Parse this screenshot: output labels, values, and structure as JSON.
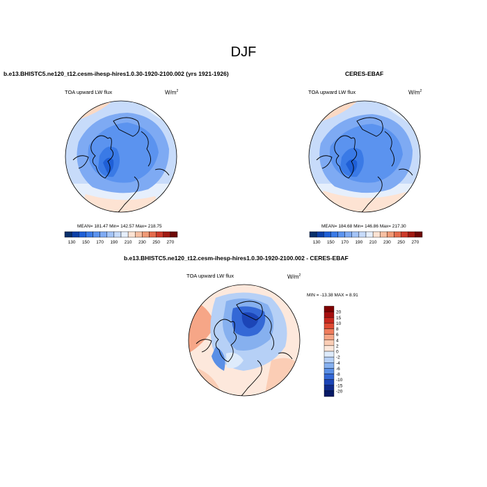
{
  "figure": {
    "title": "DJF"
  },
  "panels": [
    {
      "subtitle": "b.e13.BHISTC5.ne120_t12.cesm-ihesp-hires1.0.30-1920-2100.002 (yrs 1921-1926)",
      "variable": "TOA upward LW flux",
      "units": "W/m",
      "units_exp": "2",
      "stats": "MEAN= 181.47  Min= 142.57  Max= 218.75"
    },
    {
      "subtitle": "CERES-EBAF",
      "variable": "TOA upward LW flux",
      "units": "W/m",
      "units_exp": "2",
      "stats": "MEAN= 184.68  Min= 146.86  Max= 217.30"
    },
    {
      "subtitle": "b.e13.BHISTC5.ne120_t12.cesm-ihesp-hires1.0.30-1920-2100.002 - CERES-EBAF",
      "variable": "TOA upward LW flux",
      "units": "W/m",
      "units_exp": "2",
      "stats": "MIN = -13.38 MAX =   8.91"
    }
  ],
  "colorbar_abs": {
    "labels": [
      "130",
      "150",
      "170",
      "190",
      "210",
      "230",
      "250",
      "270"
    ],
    "colors": [
      "#08306b",
      "#0b3fa6",
      "#1f5fd6",
      "#3a7ae6",
      "#5b93ef",
      "#7eaaf3",
      "#a3c4f7",
      "#c7dbfa",
      "#e6effc",
      "#fde3d3",
      "#f7c0a3",
      "#f09a76",
      "#e46b4c",
      "#cc3a2a",
      "#a01a12",
      "#6e0806"
    ]
  },
  "colorbar_diff": {
    "labels": [
      "20",
      "15",
      "10",
      "8",
      "6",
      "4",
      "2",
      "0",
      "-2",
      "-4",
      "-6",
      "-8",
      "-10",
      "-15",
      "-20"
    ],
    "colors": [
      "#7f0000",
      "#a50f0f",
      "#c8281e",
      "#e04b34",
      "#ef7d5d",
      "#f6a687",
      "#fbcdb5",
      "#fde8dc",
      "#deebfb",
      "#b6d0f6",
      "#86b0ef",
      "#5a8fe6",
      "#3468d6",
      "#1c45b7",
      "#0f2a8c",
      "#071a66"
    ]
  }
}
